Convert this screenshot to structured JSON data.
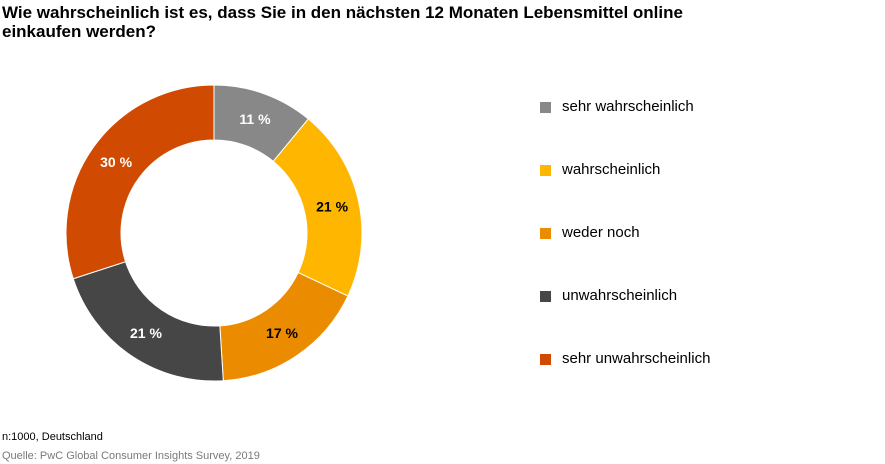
{
  "title_lines": [
    "Wie wahrscheinlich ist es, dass Sie in den nächsten 12 Monaten Lebensmittel online",
    "einkaufen werden?"
  ],
  "chart_data": {
    "type": "pie",
    "style": "donut",
    "title": "Wie wahrscheinlich ist es, dass Sie in den nächsten 12 Monaten Lebensmittel online einkaufen werden?",
    "categories": [
      "sehr wahrscheinlich",
      "wahrscheinlich",
      "weder noch",
      "unwahrscheinlich",
      "sehr unwahrscheinlich"
    ],
    "values": [
      11,
      21,
      17,
      21,
      30
    ],
    "value_labels": [
      "11 %",
      "21 %",
      "17 %",
      "21 %",
      "30 %"
    ],
    "colors": [
      "#888888",
      "#FFB600",
      "#EB8C00",
      "#464646",
      "#D04A02"
    ],
    "label_colors": [
      "#ffffff",
      "#000000",
      "#000000",
      "#ffffff",
      "#ffffff"
    ],
    "legend_position": "right"
  },
  "footnotes": {
    "sample": "n:1000, Deutschland",
    "source": "Quelle: PwC Global Consumer Insights Survey, 2019"
  }
}
